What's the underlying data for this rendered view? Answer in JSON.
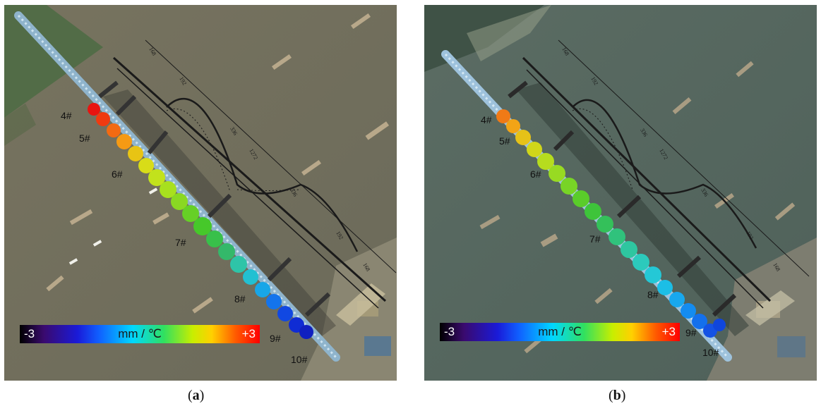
{
  "panels": [
    {
      "id": "a",
      "caption_open": "(",
      "caption_letter": "a",
      "caption_close": ")",
      "piers": [
        "4#",
        "5#",
        "6#",
        "7#",
        "8#",
        "9#",
        "10#"
      ],
      "colorbar": {
        "min": "-3",
        "max": "+3",
        "unit": "mm / ℃"
      },
      "drawing_dims": [
        "168",
        "192",
        "336",
        "1272",
        "336",
        "192",
        "168"
      ]
    },
    {
      "id": "b",
      "caption_open": "(",
      "caption_letter": "b",
      "caption_close": ")",
      "piers": [
        "4#",
        "5#",
        "6#",
        "7#",
        "8#",
        "9#",
        "10#"
      ],
      "colorbar": {
        "min": "-3",
        "max": "+3",
        "unit": "mm / ℃"
      },
      "drawing_dims": [
        "168",
        "192",
        "336",
        "1272",
        "336",
        "192",
        "168"
      ]
    }
  ],
  "colors": {
    "river_a": "#6f6c5c",
    "river_b": "#55675f",
    "bank_a": "#4f6b45",
    "bank_b": "#4a5e50",
    "bridge_deck": "#8fb4cc",
    "truss": "#1a1a1a"
  }
}
